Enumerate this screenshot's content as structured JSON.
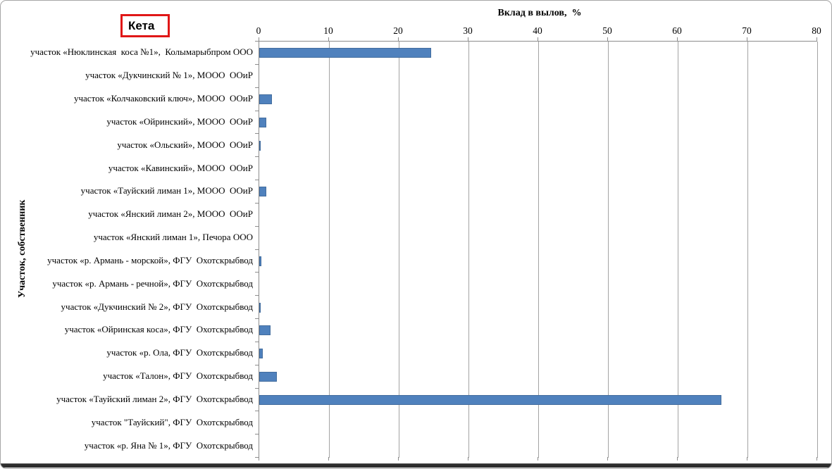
{
  "window": {
    "background": "#FFFFFF",
    "frame_border_color": "#A6A6A6",
    "bottom_bar_color": "#2E2E2E"
  },
  "title_box": {
    "label": "Кета",
    "border_color": "#E01717"
  },
  "chart_data": {
    "type": "bar",
    "orientation": "horizontal",
    "title": "Кета",
    "xlabel": "Вклад в вылов,  %",
    "ylabel": "Участок, собственник",
    "xlim": [
      0,
      80
    ],
    "xticks": [
      0,
      10,
      20,
      30,
      40,
      50,
      60,
      70,
      80
    ],
    "grid": true,
    "legend": false,
    "bar_color": "#4F81BD",
    "gridline_color": "#A3A3A3",
    "categories": [
      "участок «Нюклинская  коса №1»,  Колымарыбпром ООО",
      "участок «Дукчинский № 1», МООО  ООиР",
      "участок «Колчаковский ключ», МООО  ООиР",
      "участок «Ойринский», МООО  ООиР",
      "участок «Ольский», МООО  ООиР",
      "участок «Кавинский», МООО  ООиР",
      "участок «Тауйский лиман 1», МООО  ООиР",
      "участок «Янский лиман 2», МООО  ООиР",
      "участок «Янский лиман 1», Печора ООО",
      "участок «р. Армань - морской», ФГУ  Охотскрыбвод",
      "участок «р. Армань - речной», ФГУ  Охотскрыбвод",
      "участок «Дукчинский № 2», ФГУ  Охотскрыбвод",
      "участок «Ойринская коса», ФГУ  Охотскрыбвод",
      "участок «р. Ола, ФГУ  Охотскрыбвод",
      "участок «Талон», ФГУ  Охотскрыбвод",
      "участок «Тауйский лиман 2», ФГУ  Охотскрыбвод",
      "участок \"Тауйский\", ФГУ  Охотскрыбвод",
      "участок «р. Яна № 1», ФГУ  Охотскрыбвод"
    ],
    "values": [
      24.6,
      0,
      1.8,
      1.0,
      0.2,
      0,
      1.0,
      0,
      0,
      0.3,
      0,
      0.15,
      1.6,
      0.5,
      2.5,
      66.3,
      0,
      0
    ]
  }
}
